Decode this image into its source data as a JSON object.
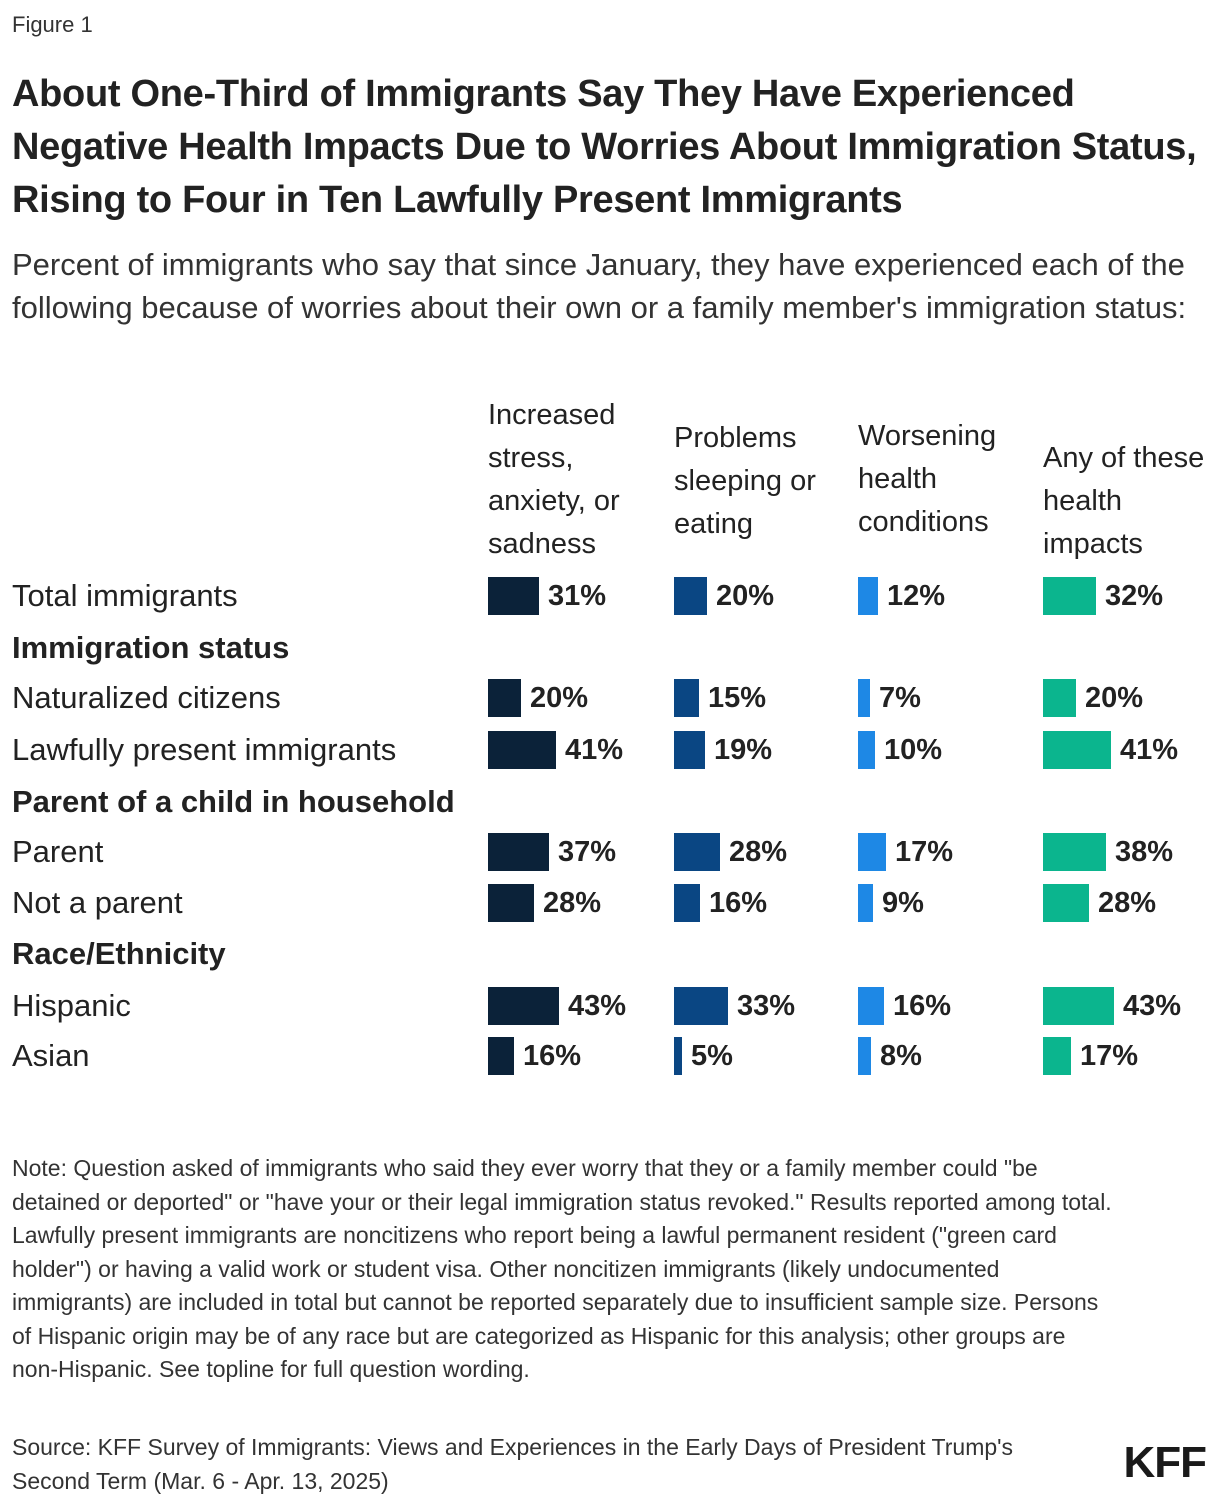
{
  "figure_label": "Figure 1",
  "title": "About One-Third of Immigrants Say They Have Experienced Negative Health Impacts Due to Worries About Immigration Status, Rising to Four in Ten Lawfully Present Immigrants",
  "subtitle": "Percent of immigrants who say that since January, they have experienced each of the following because of worries about their own or a family member's immigration status:",
  "note": "Note: Question asked of immigrants who said they ever worry that they or a family member could \"be detained or deported\" or \"have your or their legal immigration status revoked.\" Results reported among total. Lawfully present immigrants are noncitizens who report being a lawful permanent resident (\"green card holder\") or having a valid work or student visa. Other noncitizen immigrants (likely undocumented immigrants) are included in total but cannot be reported separately due to insufficient sample size. Persons of Hispanic origin may be of any race but are categorized as Hispanic for this analysis; other groups are non-Hispanic. See topline for full question wording.",
  "source": "Source: KFF Survey of Immigrants: Views and Experiences in the Early Days of President Trump's Second Term (Mar. 6 - Apr. 13, 2025)",
  "logo": "KFF",
  "colors": [
    "#0b2239",
    "#0a4683",
    "#1e88e5",
    "#0bb58e"
  ],
  "chart_data": {
    "type": "bar",
    "title": "About One-Third of Immigrants Say They Have Experienced Negative Health Impacts Due to Worries About Immigration Status, Rising to Four in Ten Lawfully Present Immigrants",
    "value_suffix": "%",
    "xlim": [
      0,
      100
    ],
    "series": [
      {
        "name": "Increased stress, anxiety, or sadness",
        "values": [
          31,
          20,
          41,
          37,
          28,
          43,
          16
        ]
      },
      {
        "name": "Problems sleeping or eating",
        "values": [
          20,
          15,
          19,
          28,
          16,
          33,
          5
        ]
      },
      {
        "name": "Worsening health conditions",
        "values": [
          12,
          7,
          10,
          17,
          9,
          16,
          8
        ]
      },
      {
        "name": "Any of these health impacts",
        "values": [
          32,
          20,
          41,
          38,
          28,
          43,
          17
        ]
      }
    ],
    "rows": [
      {
        "label": "Total immigrants",
        "group": false
      },
      {
        "label": "Immigration status",
        "group": true
      },
      {
        "label": "Naturalized citizens",
        "group": false
      },
      {
        "label": "Lawfully present immigrants",
        "group": false
      },
      {
        "label": "Parent of a child in household",
        "group": true
      },
      {
        "label": "Parent",
        "group": false
      },
      {
        "label": "Not a parent",
        "group": false
      },
      {
        "label": "Race/Ethnicity",
        "group": true
      },
      {
        "label": "Hispanic",
        "group": false
      },
      {
        "label": "Asian",
        "group": false
      }
    ]
  }
}
